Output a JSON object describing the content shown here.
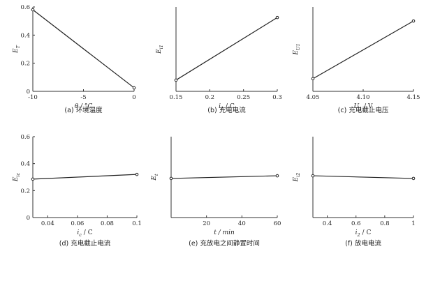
{
  "chart_data": [
    {
      "type": "line",
      "caption": "(a)   环境温度",
      "xlabel": "θ / °C",
      "ylabel": "E_T",
      "xlim": [
        -10,
        0
      ],
      "ylim": [
        0,
        0.6
      ],
      "xticks": [
        -10,
        -5,
        0
      ],
      "xtick_labels": [
        "-10",
        "-5",
        "0"
      ],
      "yticks": [
        0,
        0.2,
        0.4,
        0.6
      ],
      "ytick_labels": [
        "0",
        "0.2",
        "0.4",
        "0.6"
      ],
      "x": [
        -10,
        0
      ],
      "y": [
        0.58,
        0.025
      ]
    },
    {
      "type": "line",
      "caption": "(b)   充电电流",
      "xlabel": "i_1 / C",
      "ylabel": "E_i1",
      "xlim": [
        0.15,
        0.3
      ],
      "ylim": [
        0,
        0.6
      ],
      "xticks": [
        0.15,
        0.2,
        0.25,
        0.3
      ],
      "xtick_labels": [
        "0.15",
        "0.2",
        "0.25",
        "0.3"
      ],
      "yticks": [],
      "ytick_labels": [],
      "x": [
        0.15,
        0.3
      ],
      "y": [
        0.08,
        0.525
      ]
    },
    {
      "type": "line",
      "caption": "(c)   充电截止电压",
      "xlabel": "U_1 / V",
      "ylabel": "E_U1",
      "xlim": [
        4.05,
        4.15
      ],
      "ylim": [
        0,
        0.6
      ],
      "xticks": [
        4.05,
        4.1,
        4.15
      ],
      "xtick_labels": [
        "4.05",
        "4.10",
        "4.15"
      ],
      "yticks": [],
      "ytick_labels": [],
      "x": [
        4.05,
        4.15
      ],
      "y": [
        0.09,
        0.5
      ]
    },
    {
      "type": "line",
      "caption": "(d)   充电截止电流",
      "xlabel": "i_c / C",
      "ylabel": "E_ic",
      "xlim": [
        0.03,
        0.1
      ],
      "ylim": [
        0,
        0.6
      ],
      "xticks": [
        0.04,
        0.06,
        0.08,
        0.1
      ],
      "xtick_labels": [
        "0.04",
        "0.06",
        "0.08",
        "0.1"
      ],
      "yticks": [
        0,
        0.2,
        0.4,
        0.6
      ],
      "ytick_labels": [
        "0",
        "0.2",
        "0.4",
        "0.6"
      ],
      "x": [
        0.03,
        0.1
      ],
      "y": [
        0.285,
        0.32
      ]
    },
    {
      "type": "line",
      "caption": "(e)   充放电之间静置时间",
      "xlabel": "t / min",
      "ylabel": "E_t",
      "xlim": [
        0,
        60
      ],
      "ylim": [
        0,
        0.6
      ],
      "xticks": [
        20,
        40,
        60
      ],
      "xtick_labels": [
        "20",
        "40",
        "60"
      ],
      "yticks": [],
      "ytick_labels": [],
      "x": [
        0,
        60
      ],
      "y": [
        0.29,
        0.31
      ]
    },
    {
      "type": "line",
      "caption": "(f)   放电电流",
      "xlabel": "i_2 / C",
      "ylabel": "E_i2",
      "xlim": [
        0.3,
        1
      ],
      "ylim": [
        0,
        0.6
      ],
      "xticks": [
        0.4,
        0.6,
        0.8,
        1
      ],
      "xtick_labels": [
        "0.4",
        "0.6",
        "0.8",
        "1"
      ],
      "yticks": [],
      "ytick_labels": [],
      "x": [
        0.3,
        1
      ],
      "y": [
        0.31,
        0.29
      ]
    }
  ]
}
